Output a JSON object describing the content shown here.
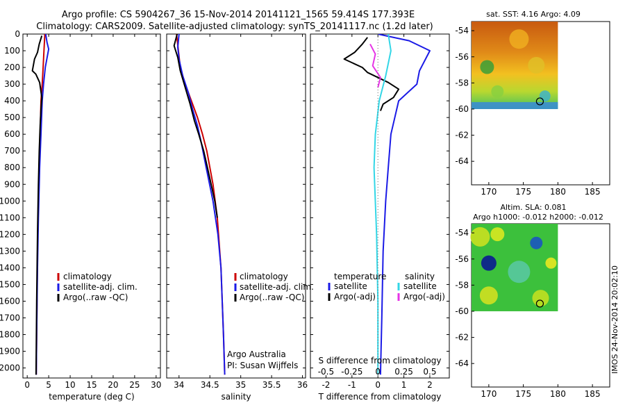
{
  "header": {
    "line1": "Argo profile: CS 5904267_36 15-Nov-2014 20141121_1565 59.414S 177.393E",
    "line2": "Climatology: CARS2009. Satellite-adjusted climatology: synTS_20141117.nc (1.2d later)"
  },
  "side_label": "IMOS 24-Nov-2014 20:02:10",
  "colors": {
    "climatology": "#cc0000",
    "satellite": "#1a1ae6",
    "argo": "#000000",
    "satellite_salinity": "#33d6e6",
    "argo_salinity": "#e633e6"
  },
  "chart_data": [
    {
      "type": "line",
      "id": "temperature",
      "xlabel": "temperature (deg C)",
      "ylabel": "",
      "xlim": [
        -1,
        31
      ],
      "ylim": [
        2060,
        0
      ],
      "xticks": [
        0,
        5,
        10,
        15,
        20,
        25,
        30
      ],
      "yticks": [
        0,
        100,
        200,
        300,
        400,
        500,
        600,
        700,
        800,
        900,
        1000,
        1100,
        1200,
        1300,
        1400,
        1500,
        1600,
        1700,
        1800,
        1900,
        2000
      ],
      "legend": {
        "placement": "lower-center",
        "entries": [
          "climatology",
          "satellite-adj. clim.",
          "Argo(..raw -QC)"
        ]
      },
      "series": [
        {
          "name": "climatology",
          "color": "#cc0000",
          "x": [
            4.1,
            3.9,
            3.7,
            3.5,
            3.2,
            3.0,
            2.7,
            2.4,
            2.2,
            2.1
          ],
          "y": [
            0,
            100,
            200,
            300,
            400,
            600,
            900,
            1300,
            1800,
            2040
          ]
        },
        {
          "name": "satellite-adj. clim.",
          "color": "#1a1ae6",
          "x": [
            4.3,
            4.6,
            5.0,
            4.2,
            3.8,
            3.5,
            3.2,
            2.9,
            2.6,
            2.4,
            2.2,
            2.1
          ],
          "y": [
            0,
            50,
            90,
            200,
            300,
            400,
            600,
            800,
            1100,
            1400,
            1800,
            2040
          ]
        },
        {
          "name": "Argo(..raw -QC)",
          "color": "#000000",
          "x": [
            3.4,
            2.8,
            2.4,
            1.7,
            1.2,
            2.0,
            2.9,
            3.4,
            3.2,
            3.0,
            2.8,
            2.6,
            2.4,
            2.2,
            2.05
          ],
          "y": [
            10,
            60,
            110,
            150,
            220,
            240,
            290,
            380,
            450,
            550,
            700,
            900,
            1200,
            1600,
            2040
          ]
        }
      ]
    },
    {
      "type": "line",
      "id": "salinity",
      "xlabel": "salinity",
      "xlim": [
        33.8,
        36.05
      ],
      "ylim": [
        2060,
        0
      ],
      "xticks": [
        34,
        34.5,
        35,
        35.5,
        36
      ],
      "legend": {
        "placement": "lower-right",
        "entries": [
          "climatology",
          "satellite-adj. clim.",
          "Argo(..raw -QC)"
        ]
      },
      "annotations": [
        "Argo Australia",
        "PI: Susan Wijffels"
      ],
      "series": [
        {
          "name": "climatology",
          "color": "#cc0000",
          "x": [
            33.96,
            33.99,
            34.02,
            34.1,
            34.2,
            34.3,
            34.38,
            34.45,
            34.55,
            34.62,
            34.68,
            34.72,
            34.74
          ],
          "y": [
            0,
            100,
            200,
            300,
            400,
            500,
            600,
            700,
            900,
            1100,
            1400,
            1800,
            2040
          ]
        },
        {
          "name": "satellite-adj. clim.",
          "color": "#1a1ae6",
          "x": [
            34.0,
            33.98,
            34.0,
            34.06,
            34.15,
            34.22,
            34.3,
            34.36,
            34.44,
            34.55,
            34.63,
            34.68,
            34.72,
            34.74
          ],
          "y": [
            0,
            80,
            150,
            250,
            350,
            450,
            550,
            650,
            800,
            1000,
            1200,
            1400,
            1800,
            2040
          ]
        },
        {
          "name": "Argo(..raw -QC)",
          "color": "#000000",
          "x": [
            33.97,
            33.92,
            33.98,
            34.02,
            34.1,
            34.18,
            34.25,
            34.32,
            34.4,
            34.46,
            34.52,
            34.58,
            34.62
          ],
          "y": [
            0,
            70,
            140,
            220,
            320,
            420,
            520,
            600,
            700,
            800,
            900,
            1000,
            1100
          ]
        }
      ]
    },
    {
      "type": "line",
      "id": "differences",
      "xlabel": "T difference from climatology",
      "xlabel_top": "S difference from climatology",
      "xlim": [
        -2.6,
        2.75
      ],
      "ylim": [
        2060,
        0
      ],
      "xticks": [
        -2,
        -1,
        0,
        1,
        2
      ],
      "top_ticks": [
        -0.5,
        -0.25,
        0,
        0.25,
        0.5
      ],
      "top_tick_labels": [
        "-0.5",
        "-0.25",
        "0",
        "0.25",
        "0.5"
      ],
      "legend": {
        "placement": "lower-center",
        "temperature_heading": "temperature",
        "salinity_heading": "salinity",
        "temperature_entries": [
          "satellite",
          "Argo(-adj)"
        ],
        "salinity_entries": [
          "satellite",
          "Argo(-adj)"
        ]
      },
      "series": [
        {
          "name": "temperature satellite",
          "color": "#1a1ae6",
          "x": [
            0.0,
            1.2,
            2.0,
            1.6,
            1.5,
            0.8,
            0.5,
            0.4,
            0.3,
            0.2,
            0.15,
            0.1
          ],
          "y": [
            0,
            40,
            100,
            220,
            300,
            400,
            600,
            800,
            1000,
            1300,
            1700,
            2040
          ]
        },
        {
          "name": "temperature Argo(-adj)",
          "color": "#000000",
          "x": [
            -0.4,
            -0.6,
            -0.9,
            -1.3,
            -0.6,
            -0.4,
            0.4,
            0.8,
            0.6,
            0.2,
            0.1
          ],
          "y": [
            20,
            60,
            110,
            150,
            200,
            230,
            290,
            330,
            380,
            420,
            460
          ]
        },
        {
          "name": "salinity satellite",
          "color": "#33d6e6",
          "x": [
            0.4,
            0.5,
            0.3,
            0.05,
            -0.1,
            -0.15,
            -0.05,
            0.0,
            0.0
          ],
          "y": [
            0,
            100,
            250,
            400,
            600,
            800,
            1200,
            1600,
            2040
          ]
        },
        {
          "name": "salinity Argo(-adj)",
          "color": "#e633e6",
          "x": [
            -0.3,
            -0.1,
            -0.2,
            0.1,
            0.0
          ],
          "y": [
            60,
            120,
            190,
            260,
            320
          ]
        }
      ]
    },
    {
      "type": "heatmap",
      "id": "sst_map",
      "title": "sat. SST: 4.16 Argo: 4.09",
      "xlim": [
        167.5,
        187.5
      ],
      "ylim": [
        -65.8,
        -53.3
      ],
      "xticks": [
        170,
        175,
        180,
        185
      ],
      "yticks": [
        -54,
        -56,
        -58,
        -60,
        -62,
        -64
      ],
      "data_extent": {
        "lon": [
          167.5,
          180.0
        ],
        "lat": [
          -60.0,
          -53.3
        ]
      },
      "argo_position": {
        "lon": 177.393,
        "lat": -59.414
      }
    },
    {
      "type": "heatmap",
      "id": "sla_map",
      "title": "Altim. SLA: 0.081",
      "subtitle": "Argo h1000: -0.012 h2000: -0.012",
      "xlim": [
        167.5,
        187.5
      ],
      "ylim": [
        -65.8,
        -53.3
      ],
      "xticks": [
        170,
        175,
        180,
        185
      ],
      "yticks": [
        -54,
        -56,
        -58,
        -60,
        -62,
        -64
      ],
      "data_extent": {
        "lon": [
          167.5,
          180.0
        ],
        "lat": [
          -60.0,
          -53.3
        ]
      },
      "argo_position": {
        "lon": 177.393,
        "lat": -59.414
      }
    }
  ]
}
